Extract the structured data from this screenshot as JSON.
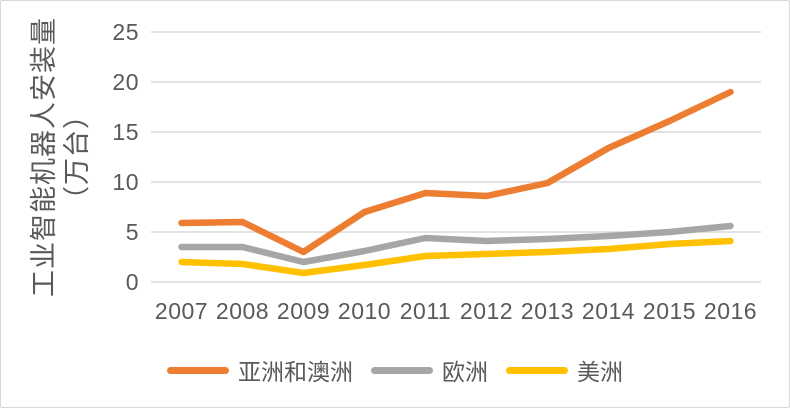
{
  "window": {
    "background": "#FFFFFF",
    "border_color": "#D9D9D9"
  },
  "chart_data": {
    "type": "line",
    "title": "",
    "ylabel": "工业智能机器人安装量（万台）",
    "ylabel_lines": [
      "工业智能机器人安装量",
      "（万台）"
    ],
    "xlabel": "",
    "categories": [
      "2007",
      "2008",
      "2009",
      "2010",
      "2011",
      "2012",
      "2013",
      "2014",
      "2015",
      "2016"
    ],
    "series": [
      {
        "name": "亚洲和澳洲",
        "color": "#ED7D31",
        "values": [
          5.9,
          6.0,
          3.0,
          7.0,
          8.9,
          8.6,
          9.9,
          13.4,
          16.1,
          19.0
        ]
      },
      {
        "name": "欧洲",
        "color": "#A6A6A6",
        "values": [
          3.5,
          3.5,
          2.0,
          3.1,
          4.4,
          4.1,
          4.3,
          4.6,
          5.0,
          5.6
        ]
      },
      {
        "name": "美洲",
        "color": "#FFC000",
        "values": [
          2.0,
          1.8,
          0.9,
          1.7,
          2.6,
          2.8,
          3.0,
          3.3,
          3.8,
          4.1
        ]
      }
    ],
    "y_ticks": [
      0,
      5,
      10,
      15,
      20,
      25
    ],
    "ylim": [
      0,
      25
    ],
    "grid": "horizontal-only",
    "legend_position": "bottom",
    "text_color": "#595959",
    "gridline_color": "#D9D9D9"
  }
}
